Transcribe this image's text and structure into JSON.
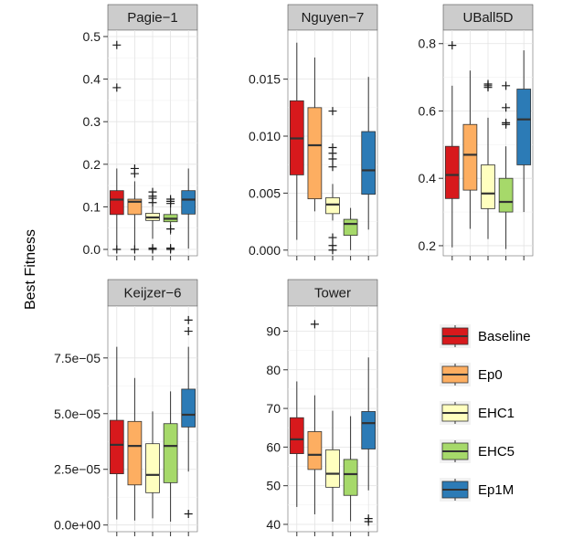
{
  "chart_data": {
    "type": "boxplot",
    "ylabel": "Best Fitness",
    "legend": {
      "position": "right",
      "entries": [
        {
          "label": "Baseline",
          "color": "#d7191c"
        },
        {
          "label": "Ep0",
          "color": "#fdae61"
        },
        {
          "label": "EHC1",
          "color": "#ffffbf"
        },
        {
          "label": "EHC5",
          "color": "#a6d96a"
        },
        {
          "label": "Ep1M",
          "color": "#2c7bb6"
        }
      ]
    },
    "grid": true,
    "panels": [
      {
        "title": "Pagie−1",
        "ylim": [
          -0.015,
          0.515
        ],
        "yticks": [
          0,
          0.1,
          0.2,
          0.3,
          0.4,
          0.5
        ],
        "yticklabels": [
          "0.0",
          "0.1",
          "0.2",
          "0.3",
          "0.4",
          "0.5"
        ],
        "boxes": [
          {
            "group": "Baseline",
            "whisker_low": 0.0,
            "q1": 0.082,
            "median": 0.117,
            "q3": 0.138,
            "whisker_high": 0.19,
            "outliers": [
              0.0,
              0.38,
              0.48
            ]
          },
          {
            "group": "Ep0",
            "whisker_low": 0.0,
            "q1": 0.082,
            "median": 0.112,
            "q3": 0.118,
            "whisker_high": 0.16,
            "outliers": [
              0.0,
              0.178,
              0.19
            ]
          },
          {
            "group": "EHC1",
            "whisker_low": 0.025,
            "q1": 0.068,
            "median": 0.075,
            "q3": 0.085,
            "whisker_high": 0.1,
            "outliers": [
              0.0,
              0.003,
              0.11,
              0.12,
              0.125,
              0.135
            ]
          },
          {
            "group": "EHC5",
            "whisker_low": 0.035,
            "q1": 0.065,
            "median": 0.072,
            "q3": 0.082,
            "whisker_high": 0.1,
            "outliers": [
              0.0,
              0.003,
              0.048,
              0.108,
              0.113,
              0.118
            ]
          },
          {
            "group": "Ep1M",
            "whisker_low": 0.002,
            "q1": 0.083,
            "median": 0.117,
            "q3": 0.138,
            "whisker_high": 0.19,
            "outliers": []
          }
        ]
      },
      {
        "title": "Nguyen−7",
        "ylim": [
          -0.0005,
          0.0193
        ],
        "yticks": [
          0,
          0.005,
          0.01,
          0.015
        ],
        "yticklabels": [
          "0.000",
          "0.005",
          "0.010",
          "0.015"
        ],
        "boxes": [
          {
            "group": "Baseline",
            "whisker_low": 0.0009,
            "q1": 0.0066,
            "median": 0.0098,
            "q3": 0.0131,
            "whisker_high": 0.0182,
            "outliers": []
          },
          {
            "group": "Ep0",
            "whisker_low": 0.0034,
            "q1": 0.0045,
            "median": 0.0092,
            "q3": 0.0125,
            "whisker_high": 0.0169,
            "outliers": []
          },
          {
            "group": "EHC1",
            "whisker_low": 0.0026,
            "q1": 0.0032,
            "median": 0.004,
            "q3": 0.0046,
            "whisker_high": 0.0058,
            "outliers": [
              0.0,
              0.0004,
              0.0011,
              0.0073,
              0.008,
              0.0085,
              0.009,
              0.0122
            ]
          },
          {
            "group": "EHC5",
            "whisker_low": 0.0,
            "q1": 0.0013,
            "median": 0.0023,
            "q3": 0.0027,
            "whisker_high": 0.0037,
            "outliers": []
          },
          {
            "group": "Ep1M",
            "whisker_low": 0.0018,
            "q1": 0.0049,
            "median": 0.007,
            "q3": 0.0104,
            "whisker_high": 0.0152,
            "outliers": []
          }
        ]
      },
      {
        "title": "UBall5D",
        "ylim": [
          0.17,
          0.84
        ],
        "yticks": [
          0.2,
          0.4,
          0.6,
          0.8
        ],
        "yticklabels": [
          "0.2",
          "0.4",
          "0.6",
          "0.8"
        ],
        "boxes": [
          {
            "group": "Baseline",
            "whisker_low": 0.195,
            "q1": 0.34,
            "median": 0.41,
            "q3": 0.495,
            "whisker_high": 0.675,
            "outliers": [
              0.795
            ]
          },
          {
            "group": "Ep0",
            "whisker_low": 0.25,
            "q1": 0.365,
            "median": 0.47,
            "q3": 0.56,
            "whisker_high": 0.72,
            "outliers": []
          },
          {
            "group": "EHC1",
            "whisker_low": 0.22,
            "q1": 0.31,
            "median": 0.355,
            "q3": 0.44,
            "whisker_high": 0.58,
            "outliers": [
              0.67,
              0.675,
              0.68
            ]
          },
          {
            "group": "EHC5",
            "whisker_low": 0.19,
            "q1": 0.3,
            "median": 0.33,
            "q3": 0.4,
            "whisker_high": 0.495,
            "outliers": [
              0.56,
              0.565,
              0.61,
              0.675
            ]
          },
          {
            "group": "Ep1M",
            "whisker_low": 0.3,
            "q1": 0.44,
            "median": 0.575,
            "q3": 0.665,
            "whisker_high": 0.78,
            "outliers": []
          }
        ]
      },
      {
        "title": "Keijzer−6",
        "ylim": [
          -3e-06,
          9.83e-05
        ],
        "yticks": [
          0,
          2.5e-05,
          5e-05,
          7.5e-05
        ],
        "yticklabels": [
          "0.0e+00",
          "2.5e−05",
          "5.0e−05",
          "7.5e−05"
        ],
        "boxes": [
          {
            "group": "Baseline",
            "whisker_low": 2.5e-06,
            "q1": 2.3e-05,
            "median": 3.6e-05,
            "q3": 4.7e-05,
            "whisker_high": 8e-05,
            "outliers": []
          },
          {
            "group": "Ep0",
            "whisker_low": 2e-06,
            "q1": 1.8e-05,
            "median": 3.55e-05,
            "q3": 4.65e-05,
            "whisker_high": 6.6e-05,
            "outliers": []
          },
          {
            "group": "EHC1",
            "whisker_low": 3e-06,
            "q1": 1.45e-05,
            "median": 2.25e-05,
            "q3": 3.65e-05,
            "whisker_high": 5.1e-05,
            "outliers": []
          },
          {
            "group": "EHC5",
            "whisker_low": 1.5e-06,
            "q1": 1.9e-05,
            "median": 3.55e-05,
            "q3": 4.55e-05,
            "whisker_high": 6e-05,
            "outliers": []
          },
          {
            "group": "Ep1M",
            "whisker_low": 2.4e-05,
            "q1": 4.4e-05,
            "median": 4.95e-05,
            "q3": 6.1e-05,
            "whisker_high": 8e-05,
            "outliers": [
              5e-06,
              8.7e-05,
              9.2e-05
            ]
          }
        ]
      },
      {
        "title": "Tower",
        "ylim": [
          38.1,
          96.5
        ],
        "yticks": [
          40,
          50,
          60,
          70,
          80,
          90
        ],
        "yticklabels": [
          "40",
          "50",
          "60",
          "70",
          "80",
          "90"
        ],
        "boxes": [
          {
            "group": "Baseline",
            "whisker_low": 44.5,
            "q1": 58.3,
            "median": 62.0,
            "q3": 67.6,
            "whisker_high": 77.0,
            "outliers": []
          },
          {
            "group": "Ep0",
            "whisker_low": 42.6,
            "q1": 54.2,
            "median": 58.0,
            "q3": 64.0,
            "whisker_high": 73.4,
            "outliers": [
              91.8
            ]
          },
          {
            "group": "EHC1",
            "whisker_low": 40.7,
            "q1": 49.6,
            "median": 53.1,
            "q3": 59.3,
            "whisker_high": 69.4,
            "outliers": []
          },
          {
            "group": "EHC5",
            "whisker_low": 40.8,
            "q1": 47.5,
            "median": 53.0,
            "q3": 56.8,
            "whisker_high": 68.0,
            "outliers": []
          },
          {
            "group": "Ep1M",
            "whisker_low": 48.8,
            "q1": 59.5,
            "median": 66.2,
            "q3": 69.2,
            "whisker_high": 83.2,
            "outliers": [
              40.7,
              41.5
            ]
          }
        ]
      }
    ]
  }
}
